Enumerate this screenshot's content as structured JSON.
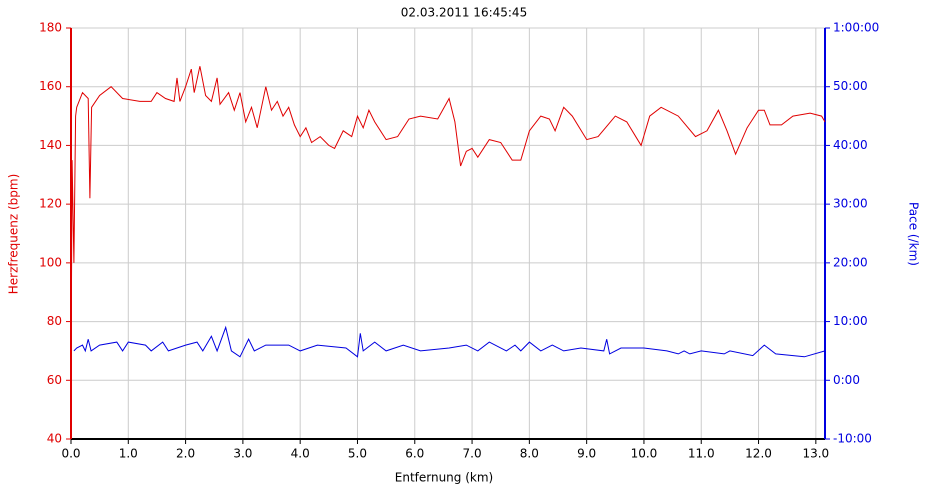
{
  "chart_data": {
    "type": "line",
    "title": "02.03.2011 16:45:45",
    "x_label": "Entfernung (km)",
    "y_label": "Herzfrequenz (bpm)",
    "y2_label": "Pace (/km)",
    "xlim": [
      0,
      13.16
    ],
    "xticks": [
      {
        "value": 0,
        "label": "0.0"
      },
      {
        "value": 1,
        "label": "1.0"
      },
      {
        "value": 2,
        "label": "2.0"
      },
      {
        "value": 3,
        "label": "3.0"
      },
      {
        "value": 4,
        "label": "4.0"
      },
      {
        "value": 5,
        "label": "5.0"
      },
      {
        "value": 6,
        "label": "6.0"
      },
      {
        "value": 7,
        "label": "7.0"
      },
      {
        "value": 8,
        "label": "8.0"
      },
      {
        "value": 9,
        "label": "9.0"
      },
      {
        "value": 10,
        "label": "10.0"
      },
      {
        "value": 11,
        "label": "11.0"
      },
      {
        "value": 12,
        "label": "12.0"
      },
      {
        "value": 13,
        "label": "13.0"
      }
    ],
    "ylim": [
      40,
      180
    ],
    "yticks": [
      40,
      60,
      80,
      100,
      120,
      140,
      160,
      180
    ],
    "y2lim": [
      -10,
      60
    ],
    "y2ticks": [
      {
        "value": -10,
        "label": "-10:00"
      },
      {
        "value": 0,
        "label": "0:00"
      },
      {
        "value": 10,
        "label": "10:00"
      },
      {
        "value": 20,
        "label": "20:00"
      },
      {
        "value": 30,
        "label": "30:00"
      },
      {
        "value": 40,
        "label": "40:00"
      },
      {
        "value": 50,
        "label": "50:00"
      },
      {
        "value": 60,
        "label": "1:00:00"
      }
    ],
    "grid": true,
    "series": [
      {
        "color": "#e00000",
        "axis": "y",
        "x": [
          0,
          0.02,
          0.05,
          0.08,
          0.1,
          0.2,
          0.3,
          0.33,
          0.36,
          0.5,
          0.7,
          0.9,
          1.2,
          1.4,
          1.5,
          1.65,
          1.8,
          1.85,
          1.9,
          2.0,
          2.1,
          2.15,
          2.25,
          2.35,
          2.45,
          2.55,
          2.6,
          2.75,
          2.85,
          2.95,
          3.05,
          3.15,
          3.25,
          3.4,
          3.5,
          3.6,
          3.7,
          3.8,
          3.9,
          4.0,
          4.1,
          4.2,
          4.35,
          4.5,
          4.6,
          4.75,
          4.9,
          5.0,
          5.1,
          5.2,
          5.3,
          5.5,
          5.7,
          5.9,
          6.1,
          6.4,
          6.6,
          6.7,
          6.8,
          6.9,
          7.0,
          7.1,
          7.3,
          7.5,
          7.7,
          7.85,
          8.0,
          8.2,
          8.35,
          8.45,
          8.6,
          8.75,
          9.0,
          9.2,
          9.5,
          9.7,
          9.95,
          10.1,
          10.3,
          10.6,
          10.9,
          11.1,
          11.3,
          11.45,
          11.6,
          11.8,
          12.0,
          12.1,
          12.2,
          12.4,
          12.6,
          12.9,
          13.1,
          13.16
        ],
        "values": [
          60,
          135,
          100,
          150,
          153,
          158,
          156,
          122,
          153,
          157,
          160,
          156,
          155,
          155,
          158,
          156,
          155,
          163,
          155,
          160,
          166,
          158,
          167,
          157,
          155,
          163,
          154,
          158,
          152,
          158,
          148,
          153,
          146,
          160,
          152,
          155,
          150,
          153,
          147,
          143,
          146,
          141,
          143,
          140,
          139,
          145,
          143,
          150,
          146,
          152,
          148,
          142,
          143,
          149,
          150,
          149,
          156,
          148,
          133,
          138,
          139,
          136,
          142,
          141,
          135,
          135,
          145,
          150,
          149,
          145,
          153,
          150,
          142,
          143,
          150,
          148,
          140,
          150,
          153,
          150,
          143,
          145,
          152,
          145,
          137,
          146,
          152,
          152,
          147,
          147,
          150,
          151,
          150,
          148
        ]
      },
      {
        "color": "#0000e0",
        "axis": "y2",
        "x": [
          0.05,
          0.1,
          0.2,
          0.25,
          0.3,
          0.35,
          0.5,
          0.8,
          0.9,
          1.0,
          1.3,
          1.4,
          1.6,
          1.7,
          2.0,
          2.2,
          2.3,
          2.45,
          2.55,
          2.7,
          2.8,
          2.95,
          3.1,
          3.2,
          3.4,
          3.8,
          4.0,
          4.3,
          4.8,
          5.0,
          5.05,
          5.1,
          5.3,
          5.5,
          5.8,
          6.1,
          6.6,
          6.9,
          7.1,
          7.3,
          7.6,
          7.75,
          7.85,
          8.0,
          8.2,
          8.4,
          8.6,
          8.9,
          9.3,
          9.35,
          9.4,
          9.6,
          10.0,
          10.4,
          10.6,
          10.7,
          10.8,
          11.0,
          11.4,
          11.5,
          11.9,
          12.1,
          12.3,
          12.8,
          13.16
        ],
        "values": [
          5,
          5.5,
          6,
          5,
          7,
          5,
          6,
          6.5,
          5,
          6.5,
          6,
          5,
          6.5,
          5,
          6,
          6.5,
          5,
          7.5,
          5,
          9,
          5,
          4,
          7,
          5,
          6,
          6,
          5,
          6,
          5.5,
          4,
          8,
          5,
          6.5,
          5,
          6,
          5,
          5.5,
          6,
          5,
          6.5,
          5,
          6,
          5,
          6.5,
          5,
          6,
          5,
          5.5,
          5,
          7,
          4.5,
          5.5,
          5.5,
          5,
          4.5,
          5,
          4.5,
          5,
          4.5,
          5,
          4.2,
          6,
          4.5,
          4,
          5
        ]
      }
    ]
  }
}
